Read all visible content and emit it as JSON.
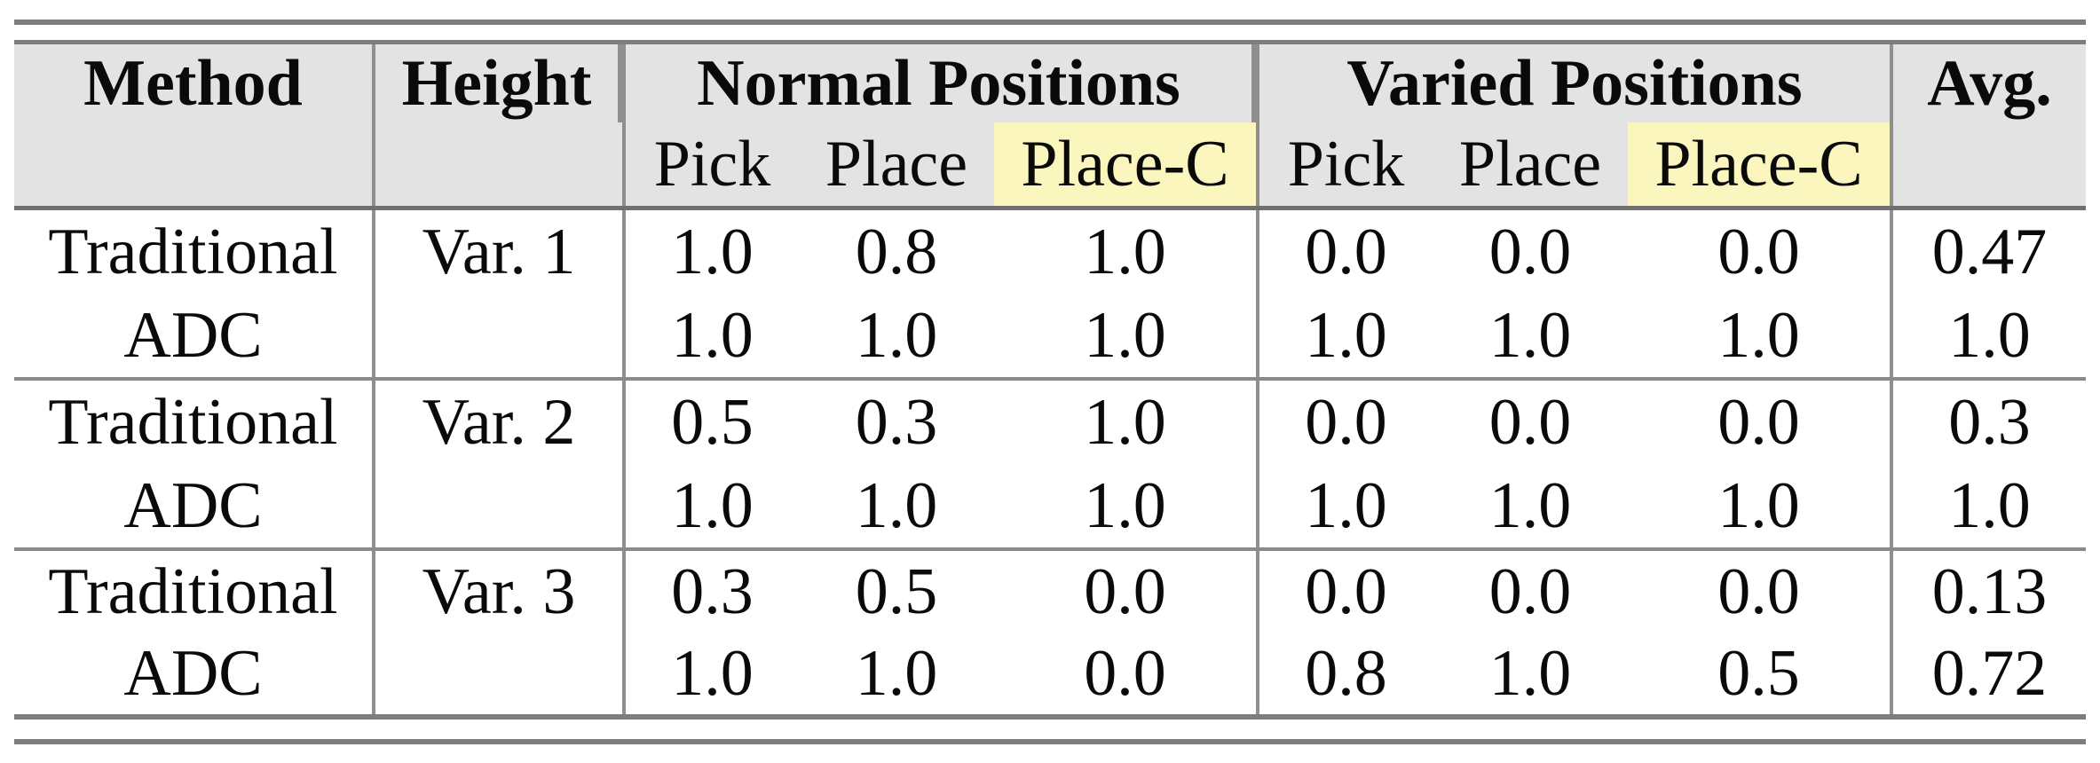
{
  "table": {
    "header": {
      "method": "Method",
      "height": "Height",
      "normal_positions": "Normal Positions",
      "varied_positions": "Varied Positions",
      "avg": "Avg.",
      "sub": {
        "pick": "Pick",
        "place": "Place",
        "place_c": "Place-C"
      }
    },
    "groups": [
      {
        "height": "Var. 1",
        "rows": [
          {
            "method": "Traditional",
            "normal": [
              "1.0",
              "0.8",
              "1.0"
            ],
            "varied": [
              "0.0",
              "0.0",
              "0.0"
            ],
            "avg": "0.47"
          },
          {
            "method": "ADC",
            "normal": [
              "1.0",
              "1.0",
              "1.0"
            ],
            "varied": [
              "1.0",
              "1.0",
              "1.0"
            ],
            "avg": "1.0"
          }
        ]
      },
      {
        "height": "Var. 2",
        "rows": [
          {
            "method": "Traditional",
            "normal": [
              "0.5",
              "0.3",
              "1.0"
            ],
            "varied": [
              "0.0",
              "0.0",
              "0.0"
            ],
            "avg": "0.3"
          },
          {
            "method": "ADC",
            "normal": [
              "1.0",
              "1.0",
              "1.0"
            ],
            "varied": [
              "1.0",
              "1.0",
              "1.0"
            ],
            "avg": "1.0"
          }
        ]
      },
      {
        "height": "Var. 3",
        "rows": [
          {
            "method": "Traditional",
            "normal": [
              "0.3",
              "0.5",
              "0.0"
            ],
            "varied": [
              "0.0",
              "0.0",
              "0.0"
            ],
            "avg": "0.13"
          },
          {
            "method": "ADC",
            "normal": [
              "1.0",
              "1.0",
              "0.0"
            ],
            "varied": [
              "0.8",
              "1.0",
              "0.5"
            ],
            "avg": "0.72"
          }
        ]
      }
    ],
    "colors": {
      "header_bg": "#e3e3e3",
      "highlight_bg": "#faf6be",
      "rule_color": "#7d7d7d",
      "grid_color": "#8f8f8f",
      "sep_color": "#8a8a8a",
      "header_underline": "#6f6f6f",
      "text_color": "#0a0a0a"
    }
  }
}
